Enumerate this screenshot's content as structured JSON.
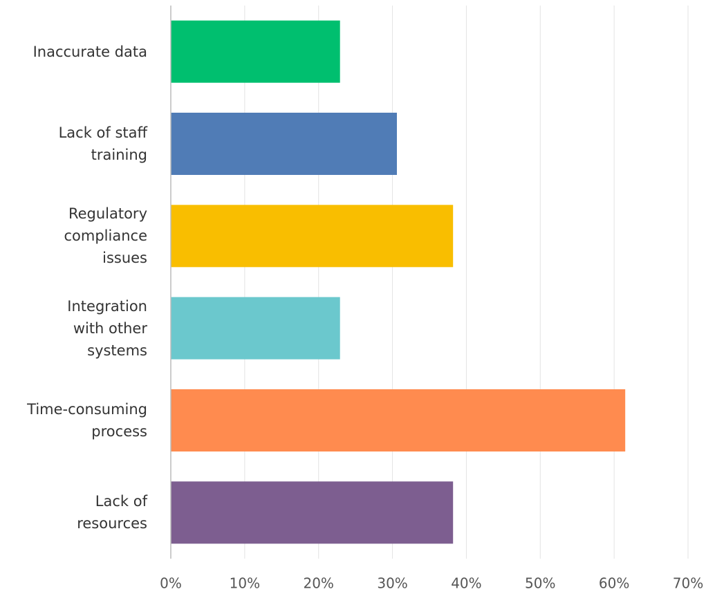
{
  "chart_data": {
    "type": "barh",
    "categories": [
      "Inaccurate data",
      "Lack of staff\ntraining",
      "Regulatory\ncompliance\nissues",
      "Integration\nwith other\nsystems",
      "Time-consuming\nprocess",
      "Lack of\nresources"
    ],
    "values": [
      22.9,
      30.6,
      38.2,
      22.9,
      61.5,
      38.2
    ],
    "colors": [
      "#00bf6f",
      "#507cb6",
      "#f9be00",
      "#6bc8cd",
      "#ff8b4f",
      "#7d5e90"
    ],
    "xlim": [
      0,
      70
    ],
    "xticks": [
      {
        "value": 0,
        "label": "0%"
      },
      {
        "value": 10,
        "label": "10%"
      },
      {
        "value": 20,
        "label": "20%"
      },
      {
        "value": 30,
        "label": "30%"
      },
      {
        "value": 40,
        "label": "40%"
      },
      {
        "value": 50,
        "label": "50%"
      },
      {
        "value": 60,
        "label": "60%"
      },
      {
        "value": 70,
        "label": "70%"
      }
    ],
    "grid": true
  }
}
